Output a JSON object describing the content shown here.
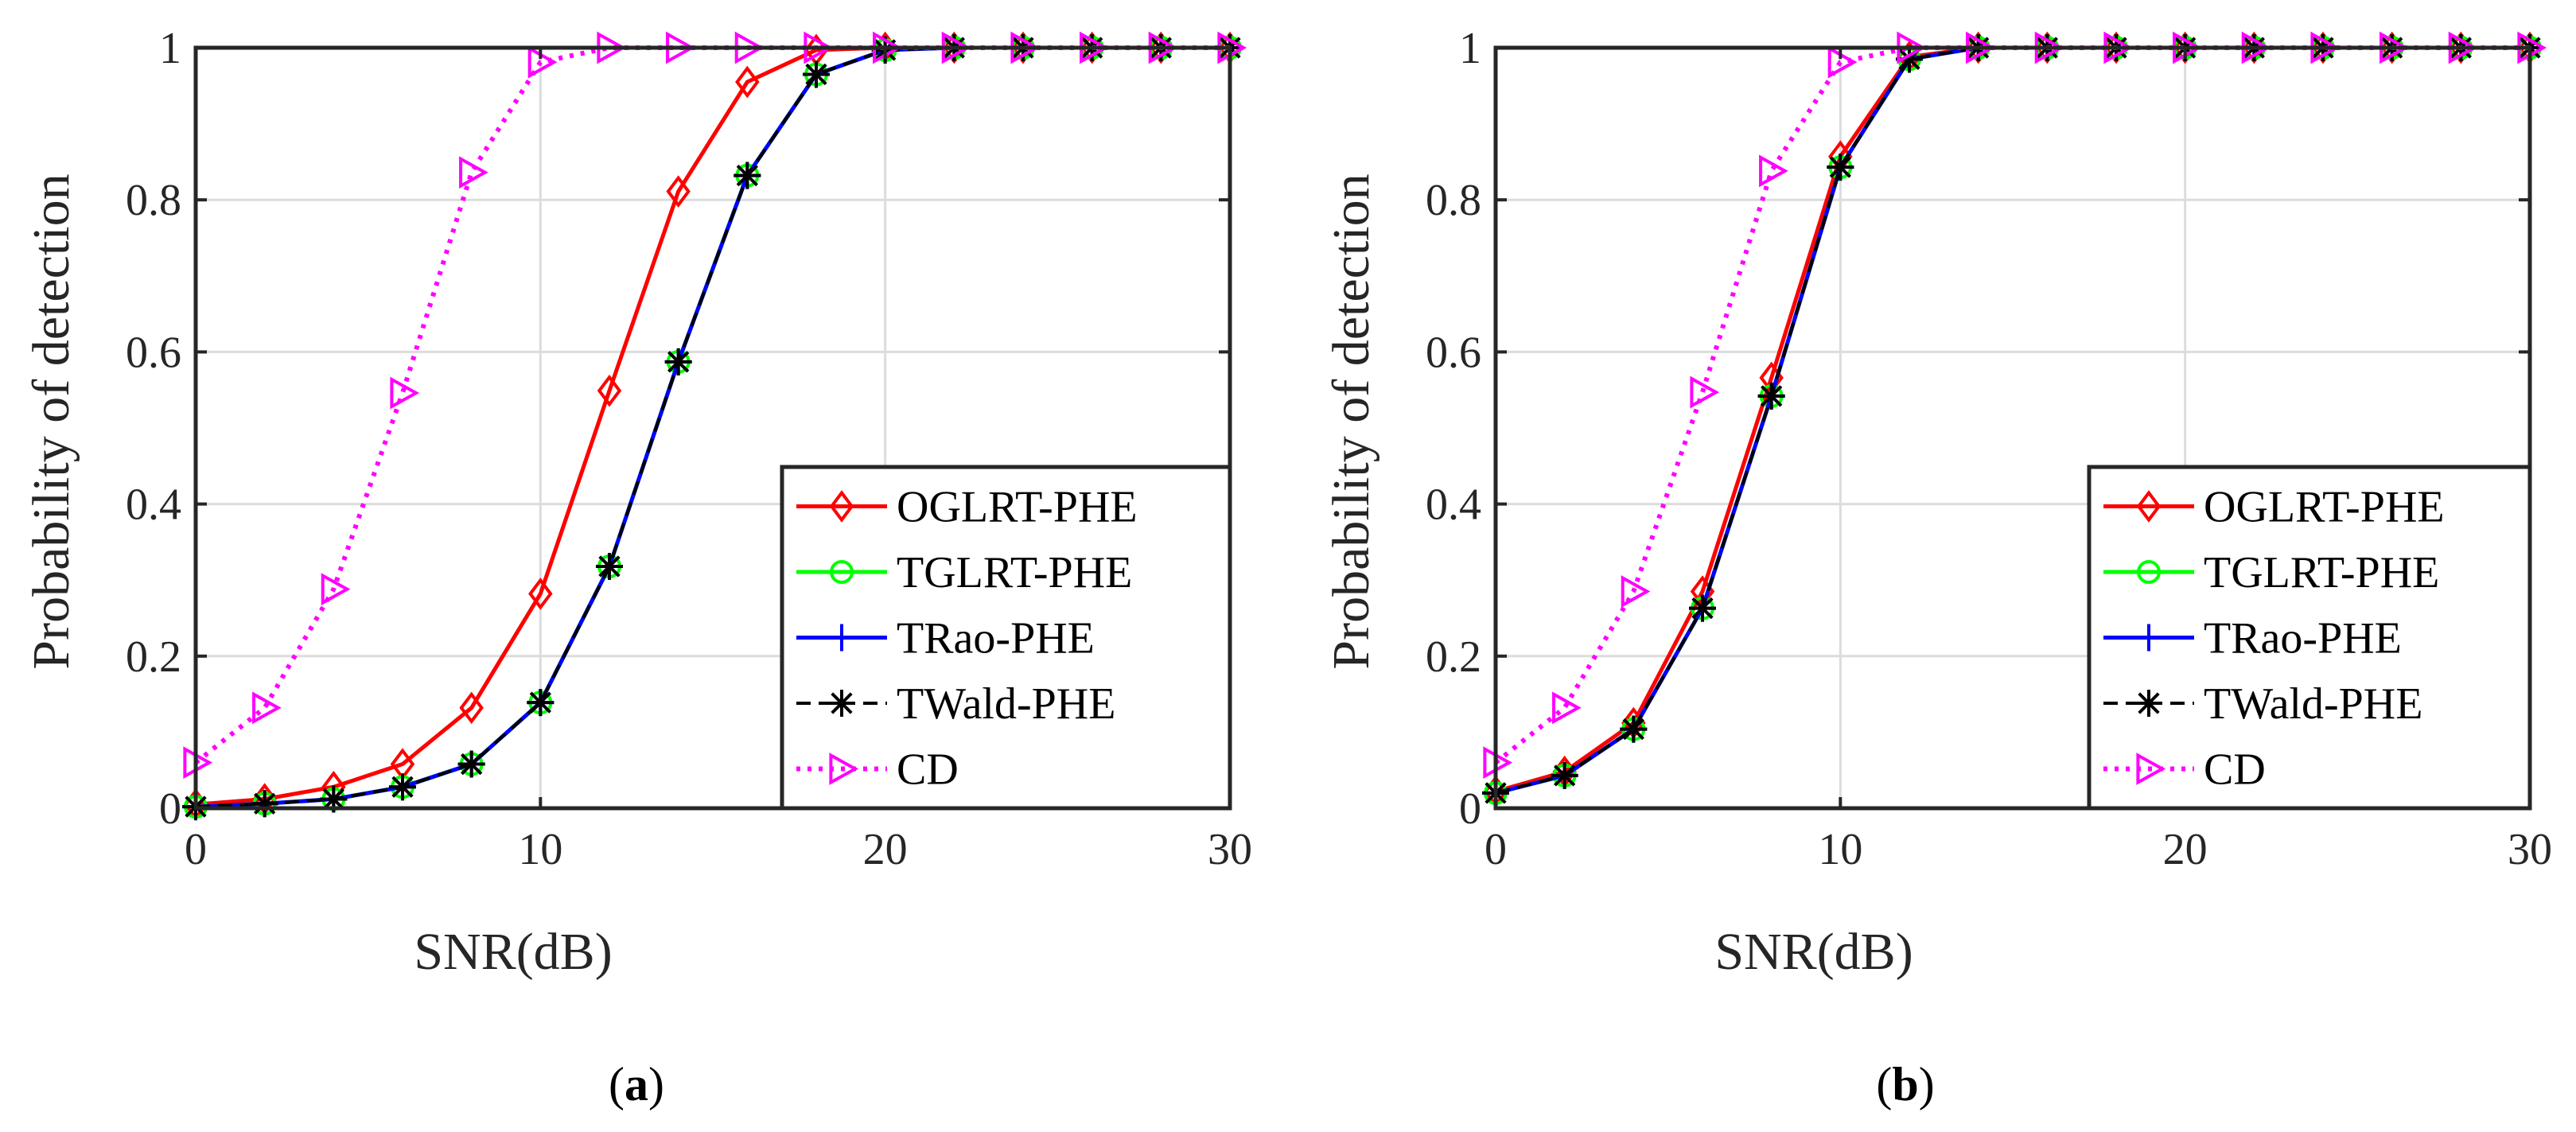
{
  "chart_data": [
    {
      "type": "line",
      "panel": "a",
      "caption_open": "(",
      "caption_letter": "a",
      "caption_close": ")",
      "xlabel": "SNR(dB)",
      "ylabel": "Probability of detection",
      "xlim": [
        0,
        30
      ],
      "ylim": [
        0,
        1
      ],
      "xticks": [
        0,
        10,
        20,
        30
      ],
      "yticks": [
        0,
        0.2,
        0.4,
        0.6,
        0.8,
        1
      ],
      "xtick_labels": [
        "0",
        "10",
        "20",
        "30"
      ],
      "ytick_labels": [
        "0",
        "0.2",
        "0.4",
        "0.6",
        "0.8",
        "1"
      ],
      "grid": true,
      "legend_position": "lower-right",
      "x": [
        0,
        2,
        4,
        6,
        8,
        10,
        12,
        14,
        16,
        18,
        20,
        22,
        24,
        26,
        28,
        30
      ],
      "series": [
        {
          "name": "OGLRT-PHE",
          "color": "#ff0000",
          "marker": "diamond",
          "dash": "solid",
          "values": [
            0.005,
            0.012,
            0.028,
            0.058,
            0.132,
            0.282,
            0.549,
            0.811,
            0.955,
            0.997,
            1.0,
            1.0,
            1.0,
            1.0,
            1.0,
            1.0
          ]
        },
        {
          "name": "TGLRT-PHE",
          "color": "#00ff00",
          "marker": "circle",
          "dash": "solid",
          "values": [
            0.002,
            0.006,
            0.012,
            0.028,
            0.058,
            0.139,
            0.318,
            0.587,
            0.832,
            0.965,
            0.997,
            1.0,
            1.0,
            1.0,
            1.0,
            1.0
          ]
        },
        {
          "name": "TRao-PHE",
          "color": "#0000ff",
          "marker": "plus",
          "dash": "solid",
          "values": [
            0.002,
            0.006,
            0.012,
            0.028,
            0.058,
            0.139,
            0.318,
            0.587,
            0.832,
            0.965,
            0.997,
            1.0,
            1.0,
            1.0,
            1.0,
            1.0
          ]
        },
        {
          "name": "TWald-PHE",
          "color": "#000000",
          "marker": "asterisk",
          "dash": "dashed",
          "values": [
            0.002,
            0.006,
            0.012,
            0.028,
            0.058,
            0.139,
            0.318,
            0.587,
            0.832,
            0.965,
            0.997,
            1.0,
            1.0,
            1.0,
            1.0,
            1.0
          ]
        },
        {
          "name": "CD",
          "color": "#ff00ff",
          "marker": "triangle-right",
          "dash": "dotted",
          "values": [
            0.06,
            0.132,
            0.288,
            0.546,
            0.836,
            0.981,
            1.0,
            1.0,
            1.0,
            1.0,
            1.0,
            1.0,
            1.0,
            1.0,
            1.0,
            1.0
          ]
        }
      ]
    },
    {
      "type": "line",
      "panel": "b",
      "caption_open": "(",
      "caption_letter": "b",
      "caption_close": ")",
      "xlabel": "SNR(dB)",
      "ylabel": "Probability of detection",
      "xlim": [
        0,
        30
      ],
      "ylim": [
        0,
        1
      ],
      "xticks": [
        0,
        10,
        20,
        30
      ],
      "yticks": [
        0,
        0.2,
        0.4,
        0.6,
        0.8,
        1
      ],
      "xtick_labels": [
        "0",
        "10",
        "20",
        "30"
      ],
      "ytick_labels": [
        "0",
        "0.2",
        "0.4",
        "0.6",
        "0.8",
        "1"
      ],
      "grid": true,
      "legend_position": "lower-right",
      "x": [
        0,
        2,
        4,
        6,
        8,
        10,
        12,
        14,
        16,
        18,
        20,
        22,
        24,
        26,
        28,
        30
      ],
      "series": [
        {
          "name": "OGLRT-PHE",
          "color": "#ff0000",
          "marker": "diamond",
          "dash": "solid",
          "values": [
            0.022,
            0.048,
            0.112,
            0.285,
            0.566,
            0.857,
            0.988,
            1.0,
            1.0,
            1.0,
            1.0,
            1.0,
            1.0,
            1.0,
            1.0,
            1.0
          ]
        },
        {
          "name": "TGLRT-PHE",
          "color": "#00ff00",
          "marker": "circle",
          "dash": "solid",
          "values": [
            0.02,
            0.043,
            0.104,
            0.263,
            0.542,
            0.843,
            0.985,
            1.0,
            1.0,
            1.0,
            1.0,
            1.0,
            1.0,
            1.0,
            1.0,
            1.0
          ]
        },
        {
          "name": "TRao-PHE",
          "color": "#0000ff",
          "marker": "plus",
          "dash": "solid",
          "values": [
            0.02,
            0.043,
            0.104,
            0.263,
            0.542,
            0.843,
            0.985,
            1.0,
            1.0,
            1.0,
            1.0,
            1.0,
            1.0,
            1.0,
            1.0,
            1.0
          ]
        },
        {
          "name": "TWald-PHE",
          "color": "#000000",
          "marker": "asterisk",
          "dash": "dashed",
          "values": [
            0.02,
            0.043,
            0.104,
            0.263,
            0.542,
            0.843,
            0.985,
            1.0,
            1.0,
            1.0,
            1.0,
            1.0,
            1.0,
            1.0,
            1.0,
            1.0
          ]
        },
        {
          "name": "CD",
          "color": "#ff00ff",
          "marker": "triangle-right",
          "dash": "dotted",
          "values": [
            0.06,
            0.132,
            0.285,
            0.547,
            0.838,
            0.981,
            1.0,
            1.0,
            1.0,
            1.0,
            1.0,
            1.0,
            1.0,
            1.0,
            1.0,
            1.0
          ]
        }
      ]
    }
  ]
}
